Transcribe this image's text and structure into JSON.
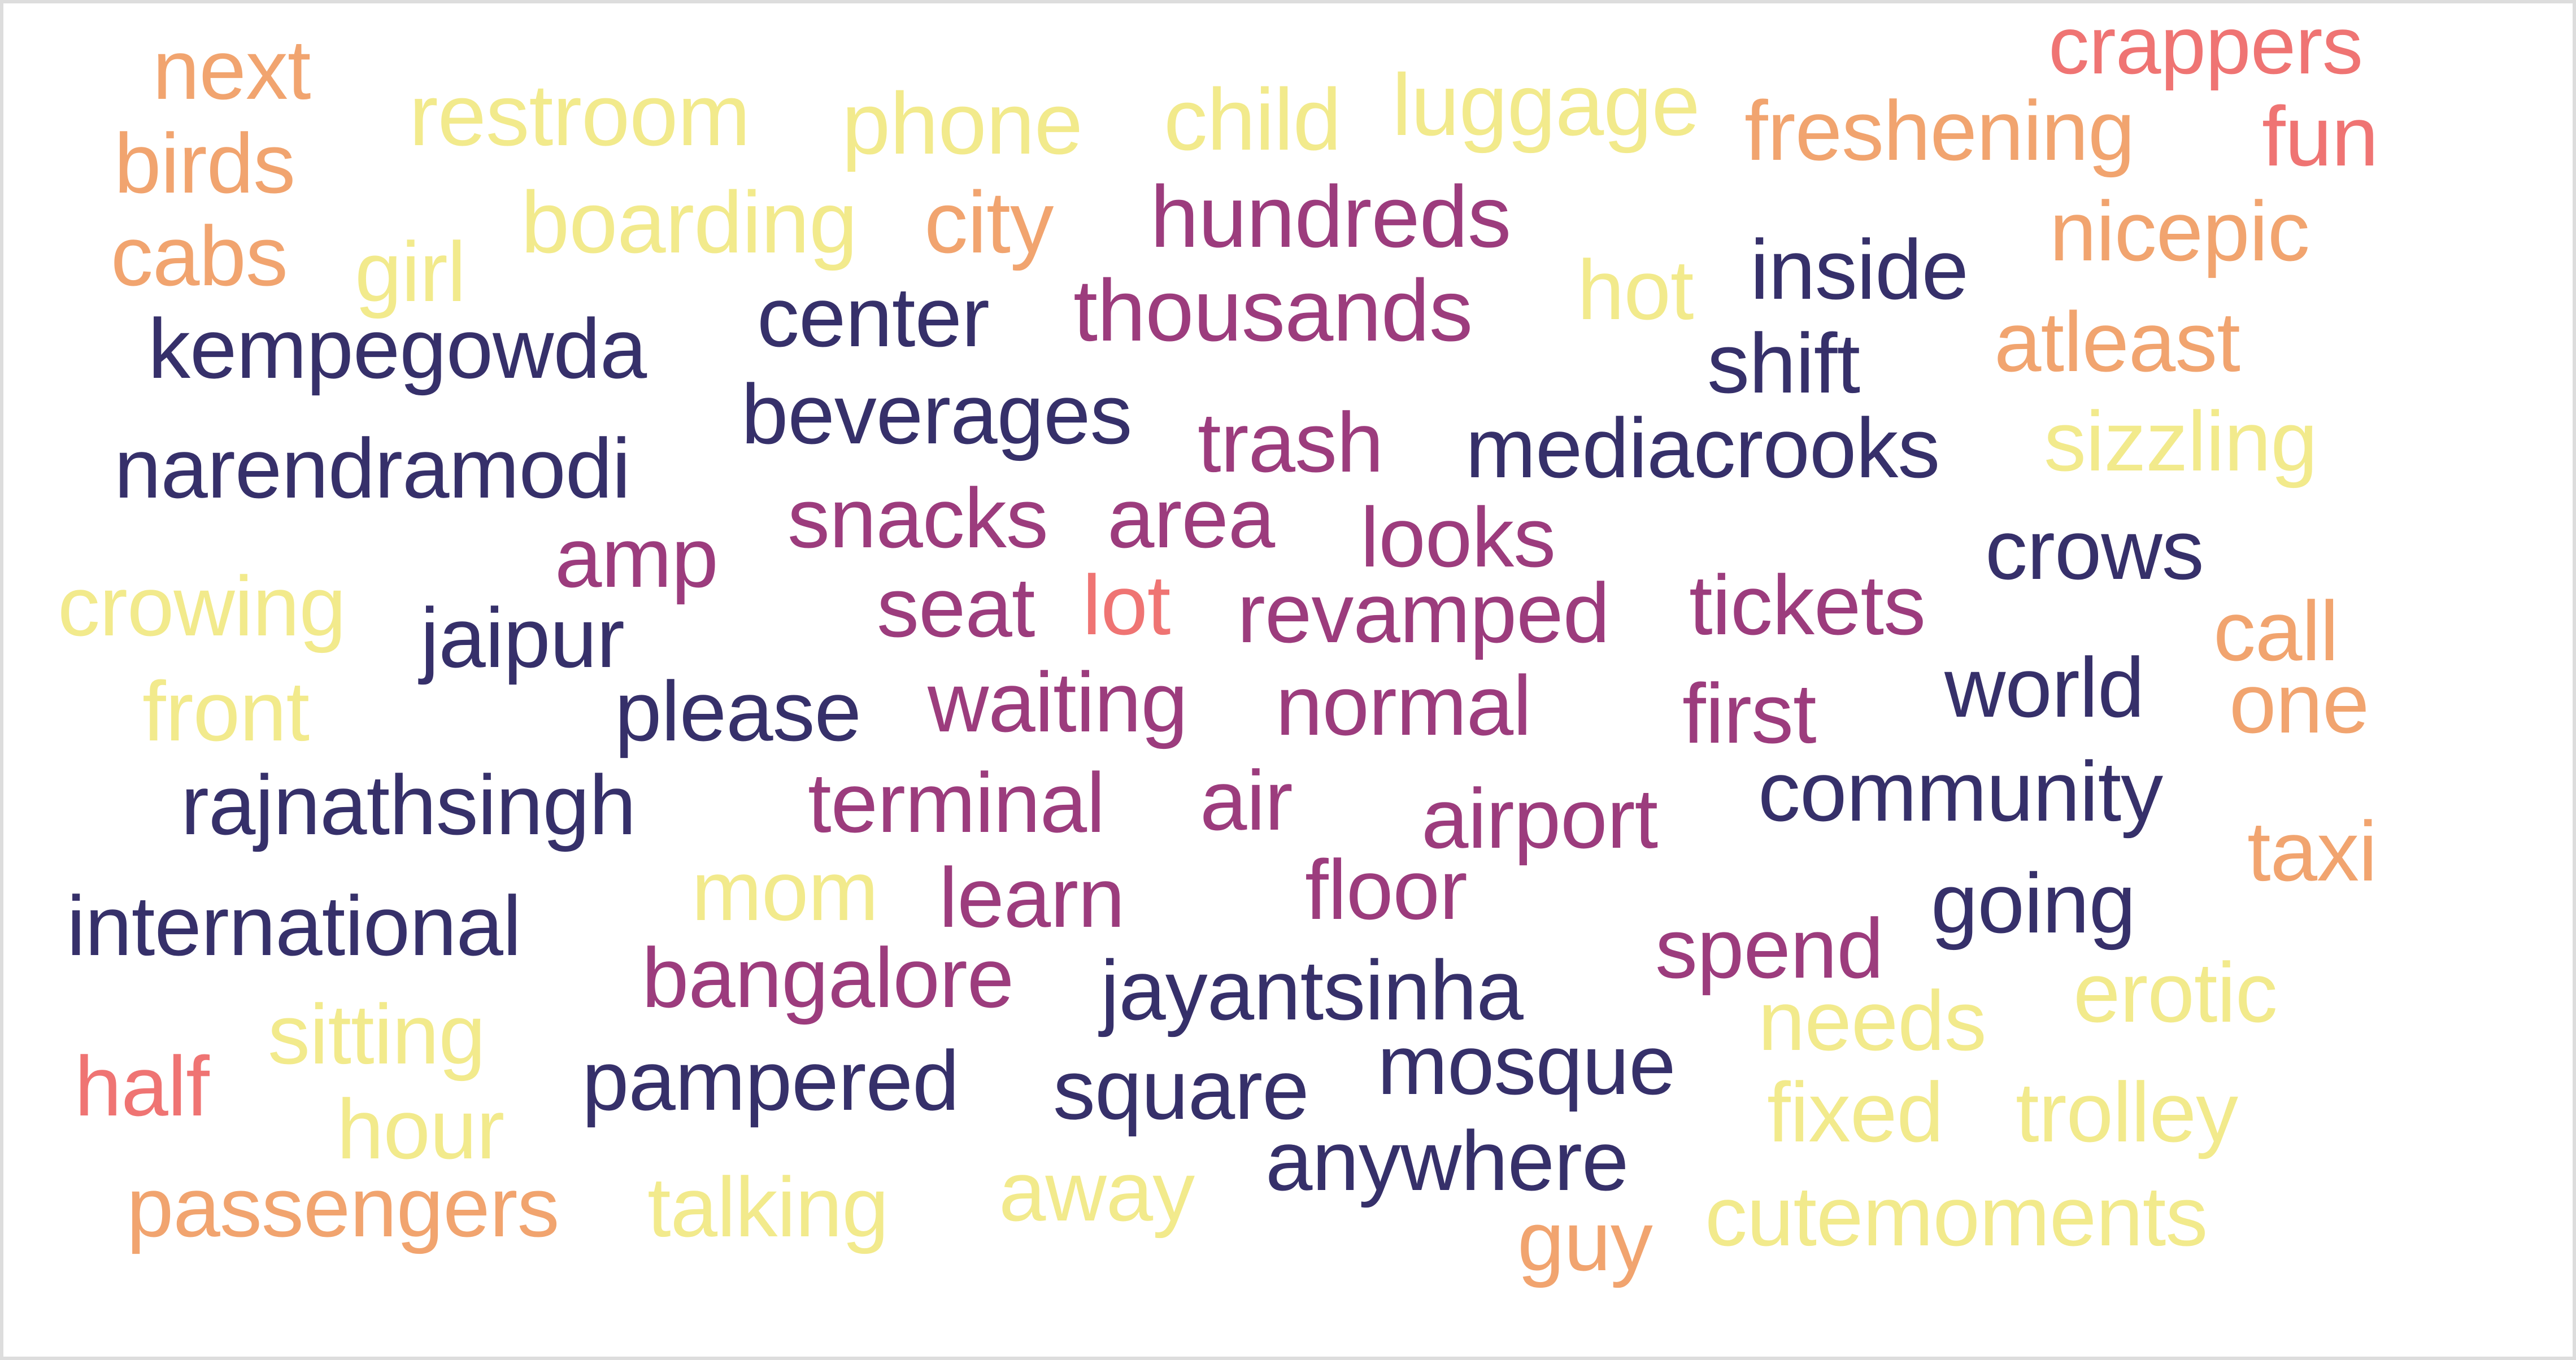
{
  "wordcloud": {
    "colors": {
      "navy": "#36306a",
      "purple": "#9c3c7d",
      "yellow": "#f2ea8c",
      "orange": "#f1a46f",
      "coral": "#ef7473"
    },
    "words": [
      "crappers",
      "next",
      "restroom",
      "phone",
      "child",
      "luggage",
      "freshening",
      "fun",
      "birds",
      "cabs",
      "girl",
      "boarding",
      "city",
      "hundreds",
      "nicepic",
      "hot",
      "inside",
      "center",
      "thousands",
      "kempegowda",
      "shift",
      "atleast",
      "beverages",
      "trash",
      "mediacrooks",
      "sizzling",
      "narendramodi",
      "snacks",
      "area",
      "looks",
      "crows",
      "amp",
      "crowing",
      "seat",
      "lot",
      "revamped",
      "tickets",
      "call",
      "jaipur",
      "front",
      "please",
      "waiting",
      "normal",
      "first",
      "world",
      "one",
      "rajnathsingh",
      "terminal",
      "air",
      "airport",
      "community",
      "taxi",
      "mom",
      "learn",
      "floor",
      "international",
      "going",
      "bangalore",
      "spend",
      "jayantsinha",
      "erotic",
      "sitting",
      "needs",
      "half",
      "pampered",
      "square",
      "mosque",
      "hour",
      "fixed",
      "trolley",
      "anywhere",
      "passengers",
      "talking",
      "away",
      "cutemoments",
      "guy"
    ]
  }
}
